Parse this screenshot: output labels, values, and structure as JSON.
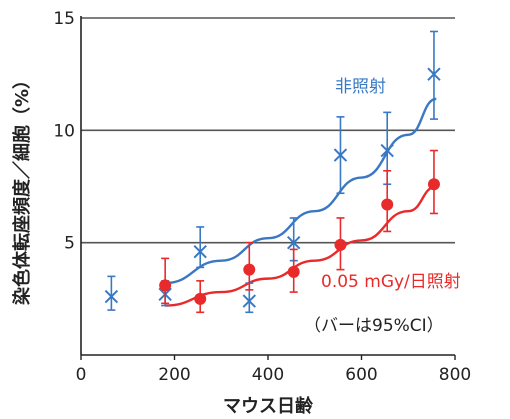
{
  "chart_data": {
    "type": "scatter",
    "xlabel": "マウス日齢",
    "ylabel": "染色体転座頻度／細胞（%）",
    "xlim": [
      0,
      800
    ],
    "ylim": [
      0,
      15
    ],
    "x_ticks": [
      "0",
      "200",
      "400",
      "600",
      "800"
    ],
    "y_ticks": [
      "5",
      "10",
      "15"
    ],
    "grid": "horizontal at 5, 10, 15",
    "note": "（バーは95%CI）",
    "series": [
      {
        "name": "非照射",
        "color": "#3a78c3",
        "marker": "x-mark",
        "points": [
          {
            "x": 65,
            "y": 2.6,
            "lo": 2.0,
            "hi": 3.5
          },
          {
            "x": 180,
            "y": 2.7,
            "lo": 2.2,
            "hi": 3.3
          },
          {
            "x": 255,
            "y": 4.6,
            "lo": 3.9,
            "hi": 5.7
          },
          {
            "x": 360,
            "y": 2.4,
            "lo": 1.9,
            "hi": 3.2
          },
          {
            "x": 455,
            "y": 5.0,
            "lo": 4.2,
            "hi": 6.1
          },
          {
            "x": 555,
            "y": 8.9,
            "lo": 7.2,
            "hi": 10.6
          },
          {
            "x": 655,
            "y": 9.1,
            "lo": 7.6,
            "hi": 10.8
          },
          {
            "x": 755,
            "y": 12.5,
            "lo": 10.5,
            "hi": 14.4
          }
        ],
        "fit": {
          "x": [
            180,
            300,
            400,
            500,
            600,
            700,
            760
          ],
          "y": [
            3.2,
            4.2,
            5.2,
            6.4,
            7.9,
            9.8,
            11.4
          ]
        }
      },
      {
        "name": "0.05 mGy/日照射",
        "color": "#e82a2a",
        "marker": "filled-circle",
        "points": [
          {
            "x": 180,
            "y": 3.1,
            "lo": 2.3,
            "hi": 4.3
          },
          {
            "x": 255,
            "y": 2.5,
            "lo": 1.9,
            "hi": 3.3
          },
          {
            "x": 360,
            "y": 3.8,
            "lo": 2.9,
            "hi": 5.0
          },
          {
            "x": 455,
            "y": 3.7,
            "lo": 2.8,
            "hi": 4.7
          },
          {
            "x": 555,
            "y": 4.9,
            "lo": 3.8,
            "hi": 6.1
          },
          {
            "x": 655,
            "y": 6.7,
            "lo": 5.5,
            "hi": 8.2
          },
          {
            "x": 755,
            "y": 7.6,
            "lo": 6.3,
            "hi": 9.1
          }
        ],
        "fit": {
          "x": [
            180,
            300,
            400,
            500,
            600,
            700,
            760
          ],
          "y": [
            2.2,
            2.8,
            3.4,
            4.2,
            5.1,
            6.4,
            7.5
          ]
        }
      }
    ]
  }
}
